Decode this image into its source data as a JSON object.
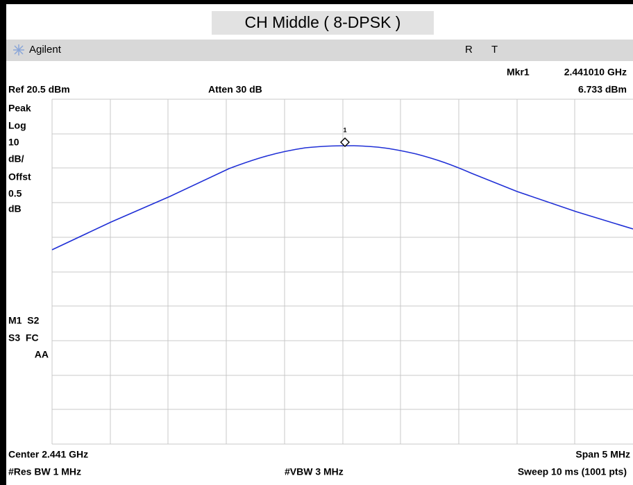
{
  "title": "CH Middle ( 8-DPSK )",
  "header": {
    "brand": "Agilent",
    "status_r": "R",
    "status_t": "T"
  },
  "marker": {
    "label": "Mkr1",
    "frequency": "2.441010 GHz",
    "level": "6.733 dBm",
    "number": "1"
  },
  "settings": {
    "ref": "Ref 20.5 dBm",
    "atten": "Atten 30 dB"
  },
  "left_labels": [
    "Peak",
    "Log",
    "10",
    "dB/",
    "Offst",
    "0.5",
    "dB"
  ],
  "status_labels": [
    "M1  S2",
    "S3  FC",
    "AA"
  ],
  "footer": {
    "center": "Center 2.441 GHz",
    "span": "Span 5 MHz",
    "res_bw": "#Res BW 1 MHz",
    "vbw": "#VBW 3 MHz",
    "sweep": "Sweep 10 ms (1001 pts)"
  }
}
